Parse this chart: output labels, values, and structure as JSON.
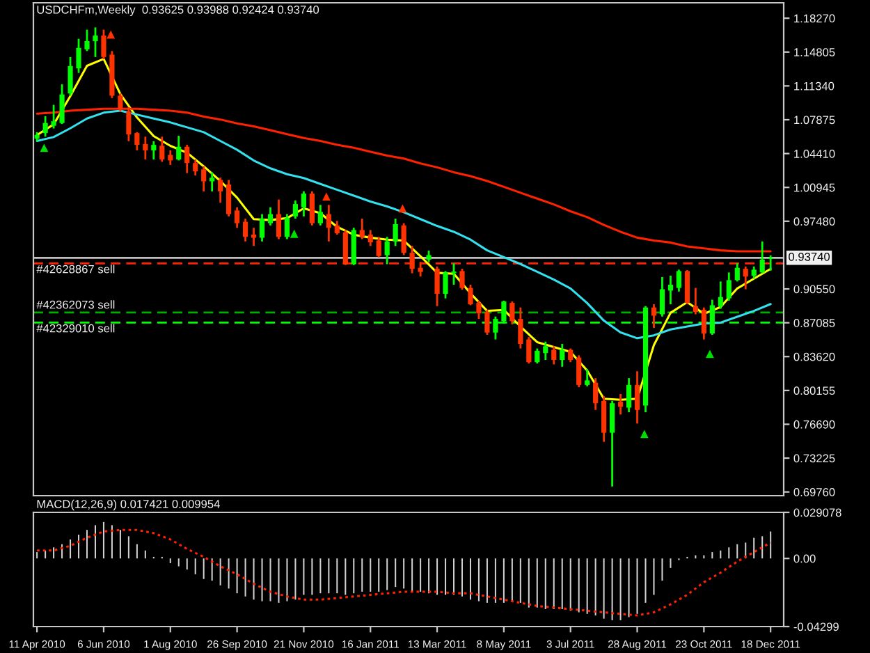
{
  "chart_data": [
    {
      "type": "candlestick",
      "title": "USDCHFm,Weekly  0.93625 0.93988 0.92424 0.93740",
      "x": [
        "2010-04-11",
        "2010-04-18",
        "2010-04-25",
        "2010-05-02",
        "2010-05-09",
        "2010-05-16",
        "2010-05-23",
        "2010-05-30",
        "2010-06-06",
        "2010-06-13",
        "2010-06-20",
        "2010-06-27",
        "2010-07-04",
        "2010-07-11",
        "2010-07-18",
        "2010-07-25",
        "2010-08-01",
        "2010-08-08",
        "2010-08-15",
        "2010-08-22",
        "2010-08-29",
        "2010-09-05",
        "2010-09-12",
        "2010-09-19",
        "2010-09-26",
        "2010-10-03",
        "2010-10-10",
        "2010-10-17",
        "2010-10-24",
        "2010-10-31",
        "2010-11-07",
        "2010-11-14",
        "2010-11-21",
        "2010-11-28",
        "2010-12-05",
        "2010-12-12",
        "2010-12-19",
        "2010-12-26",
        "2011-01-02",
        "2011-01-09",
        "2011-01-16",
        "2011-01-23",
        "2011-01-30",
        "2011-02-06",
        "2011-02-13",
        "2011-02-20",
        "2011-02-27",
        "2011-03-06",
        "2011-03-13",
        "2011-03-20",
        "2011-03-27",
        "2011-04-03",
        "2011-04-10",
        "2011-04-17",
        "2011-04-24",
        "2011-05-01",
        "2011-05-08",
        "2011-05-15",
        "2011-05-22",
        "2011-05-29",
        "2011-06-05",
        "2011-06-12",
        "2011-06-19",
        "2011-06-26",
        "2011-07-03",
        "2011-07-10",
        "2011-07-17",
        "2011-07-24",
        "2011-07-31",
        "2011-08-07",
        "2011-08-14",
        "2011-08-21",
        "2011-08-28",
        "2011-09-04",
        "2011-09-11",
        "2011-09-18",
        "2011-09-25",
        "2011-10-02",
        "2011-10-09",
        "2011-10-16",
        "2011-10-23",
        "2011-10-30",
        "2011-11-06",
        "2011-11-13",
        "2011-11-20",
        "2011-11-27",
        "2011-12-04",
        "2011-12-11",
        "2011-12-18"
      ],
      "ohlc": [
        [
          1.0595,
          1.066,
          1.0567,
          1.0632
        ],
        [
          1.0651,
          1.0824,
          1.0614,
          1.0754
        ],
        [
          1.0726,
          1.094,
          1.0698,
          1.0772
        ],
        [
          1.0754,
          1.115,
          1.0744,
          1.1047
        ],
        [
          1.1057,
          1.143,
          1.1034,
          1.1337
        ],
        [
          1.1314,
          1.1617,
          1.1267,
          1.1523
        ],
        [
          1.1509,
          1.171,
          1.1491,
          1.1593
        ],
        [
          1.1593,
          1.1733,
          1.143,
          1.1649
        ],
        [
          1.1649,
          1.171,
          1.1407,
          1.143
        ],
        [
          1.1454,
          1.1491,
          1.101,
          1.1034
        ],
        [
          1.1034,
          1.1057,
          1.087,
          1.0894
        ],
        [
          1.087,
          1.0917,
          1.0567,
          1.0637
        ],
        [
          1.0651,
          1.066,
          1.0474,
          1.053
        ],
        [
          1.0539,
          1.0614,
          1.0381,
          1.0474
        ],
        [
          1.0474,
          1.0567,
          1.0381,
          1.053
        ],
        [
          1.0521,
          1.0614,
          1.0357,
          1.0381
        ],
        [
          1.0427,
          1.0474,
          1.0325,
          1.0371
        ],
        [
          1.0381,
          1.0623,
          1.0371,
          1.0511
        ],
        [
          1.0511,
          1.053,
          1.0241,
          1.0344
        ],
        [
          1.0344,
          1.0381,
          1.0217,
          1.0259
        ],
        [
          1.0278,
          1.0311,
          1.0054,
          1.0157
        ],
        [
          1.0157,
          1.025,
          1.0054,
          1.0194
        ],
        [
          1.0171,
          1.0194,
          0.9938,
          1.0054
        ],
        [
          1.0124,
          1.0171,
          0.9798,
          0.9821
        ],
        [
          0.9858,
          0.9891,
          0.9681,
          0.9728
        ],
        [
          0.9742,
          0.9774,
          0.9541,
          0.9588
        ],
        [
          0.9611,
          0.9681,
          0.9495,
          0.9579
        ],
        [
          0.9579,
          0.9821,
          0.9541,
          0.9774
        ],
        [
          0.9728,
          0.9891,
          0.9705,
          0.9821
        ],
        [
          0.9821,
          0.997,
          0.9565,
          0.9588
        ],
        [
          0.9588,
          0.9821,
          0.9565,
          0.9784
        ],
        [
          0.9798,
          0.9961,
          0.9774,
          0.9924
        ],
        [
          0.9891,
          1.0054,
          0.9798,
          1.0031
        ],
        [
          1.0031,
          1.0054,
          0.9705,
          0.9728
        ],
        [
          0.9728,
          0.9915,
          0.9705,
          0.9844
        ],
        [
          0.9821,
          0.9915,
          0.9541,
          0.9681
        ],
        [
          0.9705,
          0.9751,
          0.9611,
          0.9625
        ],
        [
          0.9635,
          0.9658,
          0.9299,
          0.9308
        ],
        [
          0.9308,
          0.9681,
          0.9299,
          0.9658
        ],
        [
          0.9658,
          0.9774,
          0.9565,
          0.9588
        ],
        [
          0.9611,
          0.9658,
          0.9495,
          0.9532
        ],
        [
          0.9551,
          0.9588,
          0.9378,
          0.9392
        ],
        [
          0.9401,
          0.9588,
          0.9308,
          0.9541
        ],
        [
          0.9541,
          0.9774,
          0.9495,
          0.9718
        ],
        [
          0.9705,
          0.9728,
          0.9401,
          0.9425
        ],
        [
          0.9425,
          0.9495,
          0.9215,
          0.9261
        ],
        [
          0.9271,
          0.9331,
          0.9182,
          0.9229
        ],
        [
          0.9355,
          0.9448,
          0.9331,
          0.9401
        ],
        [
          0.9261,
          0.9285,
          0.8879,
          0.9005
        ],
        [
          0.9005,
          0.9238,
          0.8958,
          0.9224
        ],
        [
          0.9215,
          0.9317,
          0.9098,
          0.9233
        ],
        [
          0.9238,
          0.9261,
          0.9047,
          0.9065
        ],
        [
          0.9065,
          0.9098,
          0.8888,
          0.8898
        ],
        [
          0.8912,
          0.8935,
          0.8748,
          0.8804
        ],
        [
          0.8818,
          0.8842,
          0.8585,
          0.8608
        ],
        [
          0.8608,
          0.8772,
          0.8538,
          0.8748
        ],
        [
          0.8725,
          0.8935,
          0.8702,
          0.8926
        ],
        [
          0.8912,
          0.8926,
          0.8692,
          0.8725
        ],
        [
          0.8748,
          0.8865,
          0.8445,
          0.8492
        ],
        [
          0.8538,
          0.8562,
          0.8291,
          0.8305
        ],
        [
          0.8305,
          0.8445,
          0.8291,
          0.8422
        ],
        [
          0.8398,
          0.8515,
          0.8328,
          0.8468
        ],
        [
          0.8431,
          0.8468,
          0.8282,
          0.8328
        ],
        [
          0.8328,
          0.8492,
          0.8258,
          0.8431
        ],
        [
          0.8431,
          0.8445,
          0.8305,
          0.8328
        ],
        [
          0.8352,
          0.8375,
          0.8049,
          0.8072
        ],
        [
          0.8072,
          0.8235,
          0.8058,
          0.8119
        ],
        [
          0.8095,
          0.8142,
          0.7816,
          0.7885
        ],
        [
          0.7909,
          0.7956,
          0.7489,
          0.7582
        ],
        [
          0.7582,
          0.7909,
          0.7032,
          0.7885
        ],
        [
          0.7899,
          0.7979,
          0.7769,
          0.7848
        ],
        [
          0.7839,
          0.8142,
          0.7792,
          0.8072
        ],
        [
          0.8072,
          0.8212,
          0.7676,
          0.7816
        ],
        [
          0.7862,
          0.8879,
          0.7792,
          0.8865
        ],
        [
          0.8865,
          0.8898,
          0.8655,
          0.8781
        ],
        [
          0.8795,
          0.9177,
          0.8772,
          0.9052
        ],
        [
          0.9038,
          0.9191,
          0.8898,
          0.9098
        ],
        [
          0.9065,
          0.9252,
          0.9028,
          0.9238
        ],
        [
          0.9238,
          0.9247,
          0.8898,
          0.8912
        ],
        [
          0.8879,
          0.9065,
          0.8795,
          0.8818
        ],
        [
          0.8842,
          0.8865,
          0.8538,
          0.8599
        ],
        [
          0.8599,
          0.8944,
          0.8585,
          0.8888
        ],
        [
          0.8879,
          0.9131,
          0.8851,
          0.8972
        ],
        [
          0.8958,
          0.9224,
          0.8935,
          0.9145
        ],
        [
          0.9145,
          0.9317,
          0.9131,
          0.9271
        ],
        [
          0.9261,
          0.9285,
          0.9052,
          0.9182
        ],
        [
          0.9191,
          0.9285,
          0.9159,
          0.9252
        ],
        [
          0.9224,
          0.9541,
          0.9215,
          0.9355
        ],
        [
          0.93625,
          0.93988,
          0.92424,
          0.9374
        ]
      ],
      "colors": [
        "#00ff00",
        "#00ff00",
        "#00ff00",
        "#00ff00",
        "#00ff00",
        "#00ff00",
        "#00ff00",
        "#00ff00",
        "#ff3300",
        "#ff3300",
        "#ff3300",
        "#ff3300",
        "#ff3300",
        "#ff3300",
        "#00ff00",
        "#ff3300",
        "#ff3300",
        "#00ff00",
        "#ff3300",
        "#ff3300",
        "#ff3300",
        "#00ff00",
        "#ff3300",
        "#ff3300",
        "#ff3300",
        "#ff3300",
        "#ff3300",
        "#00ff00",
        "#00ff00",
        "#ff3300",
        "#00ff00",
        "#00ff00",
        "#00ff00",
        "#ff3300",
        "#00ff00",
        "#ff3300",
        "#ff3300",
        "#ff3300",
        "#00ff00",
        "#ff3300",
        "#ff3300",
        "#ff3300",
        "#00ff00",
        "#00ff00",
        "#ff3300",
        "#ff3300",
        "#ff3300",
        "#00ff00",
        "#ff3300",
        "#00ff00",
        "#00ff00",
        "#ff3300",
        "#ff3300",
        "#ff3300",
        "#ff3300",
        "#00ff00",
        "#00ff00",
        "#ff3300",
        "#ff3300",
        "#ff3300",
        "#00ff00",
        "#00ff00",
        "#ff3300",
        "#00ff00",
        "#ff3300",
        "#ff3300",
        "#00ff00",
        "#ff3300",
        "#ff3300",
        "#00ff00",
        "#ff3300",
        "#00ff00",
        "#ff3300",
        "#00ff00",
        "#ff3300",
        "#00ff00",
        "#00ff00",
        "#00ff00",
        "#ff3300",
        "#ff3300",
        "#ff3300",
        "#00ff00",
        "#00ff00",
        "#00ff00",
        "#00ff00",
        "#ff3300",
        "#00ff00",
        "#00ff00",
        "#00ff00"
      ],
      "series": [
        {
          "type": "line",
          "color": "#ffff00",
          "x": [
            "2010-04-11",
            "2010-04-25",
            "2010-05-09",
            "2010-05-23",
            "2010-06-06",
            "2010-06-20",
            "2010-07-04",
            "2010-07-18",
            "2010-08-01",
            "2010-08-15",
            "2010-08-29",
            "2010-09-12",
            "2010-09-26",
            "2010-10-10",
            "2010-10-24",
            "2010-11-07",
            "2010-11-21",
            "2010-12-05",
            "2010-12-19",
            "2011-01-02",
            "2011-01-16",
            "2011-01-30",
            "2011-02-13",
            "2011-02-27",
            "2011-03-13",
            "2011-03-27",
            "2011-04-10",
            "2011-04-24",
            "2011-05-08",
            "2011-05-22",
            "2011-06-05",
            "2011-06-19",
            "2011-07-03",
            "2011-07-17",
            "2011-07-31",
            "2011-08-14",
            "2011-08-28",
            "2011-09-11",
            "2011-09-25",
            "2011-10-09",
            "2011-10-23",
            "2011-11-06",
            "2011-11-20",
            "2011-12-04",
            "2011-12-18"
          ],
          "values": [
            1.063,
            1.074,
            1.103,
            1.134,
            1.141,
            1.105,
            1.081,
            1.062,
            1.052,
            1.045,
            1.031,
            1.016,
            0.999,
            0.977,
            0.976,
            0.978,
            0.988,
            0.983,
            0.969,
            0.961,
            0.958,
            0.956,
            0.955,
            0.939,
            0.922,
            0.921,
            0.901,
            0.883,
            0.884,
            0.867,
            0.851,
            0.846,
            0.841,
            0.822,
            0.793,
            0.792,
            0.793,
            0.848,
            0.881,
            0.892,
            0.88,
            0.887,
            0.906,
            0.916,
            0.926
          ]
        },
        {
          "type": "line",
          "color": "#33e0ee",
          "x": [
            "2010-04-11",
            "2010-04-25",
            "2010-05-09",
            "2010-05-23",
            "2010-06-06",
            "2010-06-20",
            "2010-07-04",
            "2010-07-18",
            "2010-08-01",
            "2010-08-15",
            "2010-08-29",
            "2010-09-12",
            "2010-09-26",
            "2010-10-10",
            "2010-10-24",
            "2010-11-07",
            "2010-11-21",
            "2010-12-05",
            "2010-12-19",
            "2011-01-02",
            "2011-01-16",
            "2011-01-30",
            "2011-02-13",
            "2011-02-27",
            "2011-03-13",
            "2011-03-27",
            "2011-04-10",
            "2011-04-24",
            "2011-05-08",
            "2011-05-22",
            "2011-06-05",
            "2011-06-19",
            "2011-07-03",
            "2011-07-17",
            "2011-07-31",
            "2011-08-14",
            "2011-08-28",
            "2011-09-11",
            "2011-09-25",
            "2011-10-09",
            "2011-10-23",
            "2011-11-06",
            "2011-11-20",
            "2011-12-04",
            "2011-12-18"
          ],
          "values": [
            1.057,
            1.061,
            1.07,
            1.08,
            1.086,
            1.088,
            1.084,
            1.08,
            1.076,
            1.071,
            1.066,
            1.057,
            1.048,
            1.037,
            1.029,
            1.023,
            1.019,
            1.013,
            1.007,
            1.001,
            0.995,
            0.99,
            0.984,
            0.977,
            0.97,
            0.964,
            0.956,
            0.945,
            0.938,
            0.931,
            0.923,
            0.915,
            0.906,
            0.891,
            0.873,
            0.861,
            0.855,
            0.858,
            0.864,
            0.867,
            0.87,
            0.871,
            0.877,
            0.883,
            0.89
          ]
        },
        {
          "type": "line",
          "color": "#ff2200",
          "x": [
            "2010-04-11",
            "2010-04-25",
            "2010-05-09",
            "2010-05-23",
            "2010-06-06",
            "2010-06-20",
            "2010-07-04",
            "2010-07-18",
            "2010-08-01",
            "2010-08-15",
            "2010-08-29",
            "2010-09-12",
            "2010-09-26",
            "2010-10-10",
            "2010-10-24",
            "2010-11-07",
            "2010-11-21",
            "2010-12-05",
            "2010-12-19",
            "2011-01-02",
            "2011-01-16",
            "2011-01-30",
            "2011-02-13",
            "2011-02-27",
            "2011-03-13",
            "2011-03-27",
            "2011-04-10",
            "2011-04-24",
            "2011-05-08",
            "2011-05-22",
            "2011-06-05",
            "2011-06-19",
            "2011-07-03",
            "2011-07-17",
            "2011-07-31",
            "2011-08-14",
            "2011-08-28",
            "2011-09-11",
            "2011-09-25",
            "2011-10-09",
            "2011-10-23",
            "2011-11-06",
            "2011-11-20",
            "2011-12-04",
            "2011-12-18"
          ],
          "values": [
            1.085,
            1.086,
            1.088,
            1.089,
            1.09,
            1.09,
            1.09,
            1.089,
            1.088,
            1.086,
            1.082,
            1.079,
            1.075,
            1.072,
            1.068,
            1.064,
            1.06,
            1.057,
            1.053,
            1.05,
            1.046,
            1.042,
            1.039,
            1.034,
            1.03,
            1.025,
            1.021,
            1.016,
            1.01,
            1.004,
            0.998,
            0.992,
            0.985,
            0.979,
            0.971,
            0.964,
            0.958,
            0.955,
            0.953,
            0.949,
            0.947,
            0.945,
            0.944,
            0.944,
            0.944
          ]
        },
        {
          "type": "scatter",
          "color": "#00e000",
          "marker": "triangle",
          "x": [
            "2010-04-17",
            "2010-11-13",
            "2011-09-03",
            "2011-10-28"
          ],
          "values": [
            1.05,
            0.962,
            0.757,
            0.839
          ]
        },
        {
          "type": "scatter",
          "color": "#ff3300",
          "marker": "triangle",
          "x": [
            "2010-06-12",
            "2010-12-10",
            "2011-02-12"
          ],
          "values": [
            1.166,
            1.0,
            0.988
          ]
        }
      ],
      "ref_lines": [
        {
          "axis": "y",
          "value": 0.9374,
          "label": "0.93740",
          "color": "#c0c0c0",
          "line_style": "solid"
        },
        {
          "axis": "y",
          "value": 0.9317,
          "label": "#42628867 sell",
          "color": "#ff2200",
          "line_style": "dashed"
        },
        {
          "axis": "y",
          "value": 0.8814,
          "label": "#42362073 sell",
          "color": "#00b000",
          "line_style": "dashed"
        },
        {
          "axis": "y",
          "value": 0.8711,
          "label": "#42329010 sell",
          "color": "#00ff00",
          "line_style": "dashed"
        }
      ],
      "xlim": [
        "2010-04-08",
        "2011-12-29"
      ],
      "ylim": [
        0.6938,
        1.1985
      ],
      "yticks": [
        {
          "value": 1.1827,
          "label": "1.18270"
        },
        1.14805,
        {
          "value": 1.1134,
          "label": "1.11340"
        },
        1.07875,
        {
          "value": 1.0441,
          "label": "1.04410"
        },
        1.00945,
        {
          "value": 0.9748,
          "label": "0.97480"
        },
        {
          "value": 0.9055,
          "label": "0.90550"
        },
        0.87085,
        {
          "value": 0.8362,
          "label": "0.83620"
        },
        0.80155,
        {
          "value": 0.7669,
          "label": "0.76690"
        },
        0.73225,
        {
          "value": 0.6976,
          "label": "0.69760"
        }
      ],
      "tick_labels": "y"
    },
    {
      "type": "bar",
      "title": "MACD(12,26,9) 0.017421 0.009954",
      "x": [
        "2010-04-11",
        "2010-04-18",
        "2010-04-25",
        "2010-05-02",
        "2010-05-09",
        "2010-05-16",
        "2010-05-23",
        "2010-05-30",
        "2010-06-06",
        "2010-06-13",
        "2010-06-20",
        "2010-06-27",
        "2010-07-04",
        "2010-07-11",
        "2010-07-18",
        "2010-07-25",
        "2010-08-01",
        "2010-08-08",
        "2010-08-15",
        "2010-08-22",
        "2010-08-29",
        "2010-09-05",
        "2010-09-12",
        "2010-09-19",
        "2010-09-26",
        "2010-10-03",
        "2010-10-10",
        "2010-10-17",
        "2010-10-24",
        "2010-10-31",
        "2010-11-07",
        "2010-11-14",
        "2010-11-21",
        "2010-11-28",
        "2010-12-05",
        "2010-12-12",
        "2010-12-19",
        "2010-12-26",
        "2011-01-02",
        "2011-01-09",
        "2011-01-16",
        "2011-01-23",
        "2011-01-30",
        "2011-02-06",
        "2011-02-13",
        "2011-02-20",
        "2011-02-27",
        "2011-03-06",
        "2011-03-13",
        "2011-03-20",
        "2011-03-27",
        "2011-04-03",
        "2011-04-10",
        "2011-04-17",
        "2011-04-24",
        "2011-05-01",
        "2011-05-08",
        "2011-05-15",
        "2011-05-22",
        "2011-05-29",
        "2011-06-05",
        "2011-06-12",
        "2011-06-19",
        "2011-06-26",
        "2011-07-03",
        "2011-07-10",
        "2011-07-17",
        "2011-07-24",
        "2011-07-31",
        "2011-08-07",
        "2011-08-14",
        "2011-08-21",
        "2011-08-28",
        "2011-09-04",
        "2011-09-11",
        "2011-09-18",
        "2011-09-25",
        "2011-10-02",
        "2011-10-09",
        "2011-10-16",
        "2011-10-23",
        "2011-10-30",
        "2011-11-06",
        "2011-11-13",
        "2011-11-20",
        "2011-11-27",
        "2011-12-04",
        "2011-12-11",
        "2011-12-18"
      ],
      "series": [
        {
          "type": "bar",
          "color": "#d0d0d0",
          "values": [
            0.004,
            0.005,
            0.007,
            0.009,
            0.012,
            0.015,
            0.018,
            0.021,
            0.023,
            0.021,
            0.018,
            0.014,
            0.009,
            0.005,
            0.001,
            0.001,
            -0.003,
            -0.005,
            -0.007,
            -0.01,
            -0.013,
            -0.014,
            -0.017,
            -0.019,
            -0.022,
            -0.024,
            -0.026,
            -0.027,
            -0.027,
            -0.028,
            -0.027,
            -0.026,
            -0.023,
            -0.023,
            -0.022,
            -0.022,
            -0.022,
            -0.023,
            -0.022,
            -0.021,
            -0.021,
            -0.021,
            -0.02,
            -0.018,
            -0.019,
            -0.021,
            -0.021,
            -0.022,
            -0.023,
            -0.023,
            -0.023,
            -0.024,
            -0.026,
            -0.027,
            -0.028,
            -0.028,
            -0.028,
            -0.027,
            -0.028,
            -0.031,
            -0.031,
            -0.032,
            -0.032,
            -0.032,
            -0.033,
            -0.034,
            -0.035,
            -0.036,
            -0.038,
            -0.039,
            -0.039,
            -0.037,
            -0.035,
            -0.028,
            -0.023,
            -0.014,
            -0.006,
            -0.001,
            0.001,
            0.002,
            0.002,
            0.004,
            0.005,
            0.007,
            0.009,
            0.01,
            0.013,
            0.014,
            0.017
          ]
        },
        {
          "type": "line",
          "color": "#ff2200",
          "line_style": "dotted",
          "x": [
            "2010-04-11",
            "2010-04-25",
            "2010-05-09",
            "2010-05-23",
            "2010-06-06",
            "2010-06-20",
            "2010-07-04",
            "2010-07-18",
            "2010-08-01",
            "2010-08-15",
            "2010-08-29",
            "2010-09-12",
            "2010-09-26",
            "2010-10-10",
            "2010-10-24",
            "2010-11-07",
            "2010-11-21",
            "2010-12-05",
            "2010-12-19",
            "2011-01-02",
            "2011-01-16",
            "2011-01-30",
            "2011-02-13",
            "2011-02-27",
            "2011-03-13",
            "2011-03-27",
            "2011-04-10",
            "2011-04-24",
            "2011-05-08",
            "2011-05-22",
            "2011-06-05",
            "2011-06-19",
            "2011-07-03",
            "2011-07-17",
            "2011-07-31",
            "2011-08-14",
            "2011-08-28",
            "2011-09-11",
            "2011-09-25",
            "2011-10-09",
            "2011-10-23",
            "2011-11-06",
            "2011-11-20",
            "2011-12-04",
            "2011-12-18"
          ],
          "values": [
            0.005,
            0.005,
            0.008,
            0.013,
            0.017,
            0.018,
            0.018,
            0.016,
            0.012,
            0.006,
            0.001,
            -0.005,
            -0.01,
            -0.016,
            -0.021,
            -0.024,
            -0.026,
            -0.026,
            -0.025,
            -0.024,
            -0.023,
            -0.022,
            -0.021,
            -0.021,
            -0.021,
            -0.022,
            -0.022,
            -0.024,
            -0.026,
            -0.028,
            -0.03,
            -0.031,
            -0.032,
            -0.033,
            -0.034,
            -0.035,
            -0.036,
            -0.034,
            -0.029,
            -0.023,
            -0.015,
            -0.009,
            -0.002,
            0.004,
            0.01
          ]
        }
      ],
      "xlim": [
        "2010-04-08",
        "2011-12-29"
      ],
      "xticks": [
        {
          "value": "2010-04-11",
          "label": "11 Apr 2010"
        },
        {
          "value": "2010-06-06",
          "label": "6 Jun 2010"
        },
        {
          "value": "2010-08-01",
          "label": "1 Aug 2010"
        },
        {
          "value": "2010-09-26",
          "label": "26 Sep 2010"
        },
        {
          "value": "2010-11-21",
          "label": "21 Nov 2010"
        },
        {
          "value": "2011-01-16",
          "label": "16 Jan 2011"
        },
        {
          "value": "2011-03-13",
          "label": "13 Mar 2011"
        },
        {
          "value": "2011-05-08",
          "label": "8 May 2011"
        },
        {
          "value": "2011-07-03",
          "label": "3 Jul 2011"
        },
        {
          "value": "2011-08-28",
          "label": "28 Aug 2011"
        },
        {
          "value": "2011-10-23",
          "label": "23 Oct 2011"
        },
        {
          "value": "2011-12-18",
          "label": "18 Dec 2011"
        }
      ],
      "ylim": [
        -0.04299,
        0.029078
      ],
      "yticks": [
        0.029078,
        {
          "value": 0,
          "label": "0.00"
        },
        -0.04299
      ]
    }
  ]
}
